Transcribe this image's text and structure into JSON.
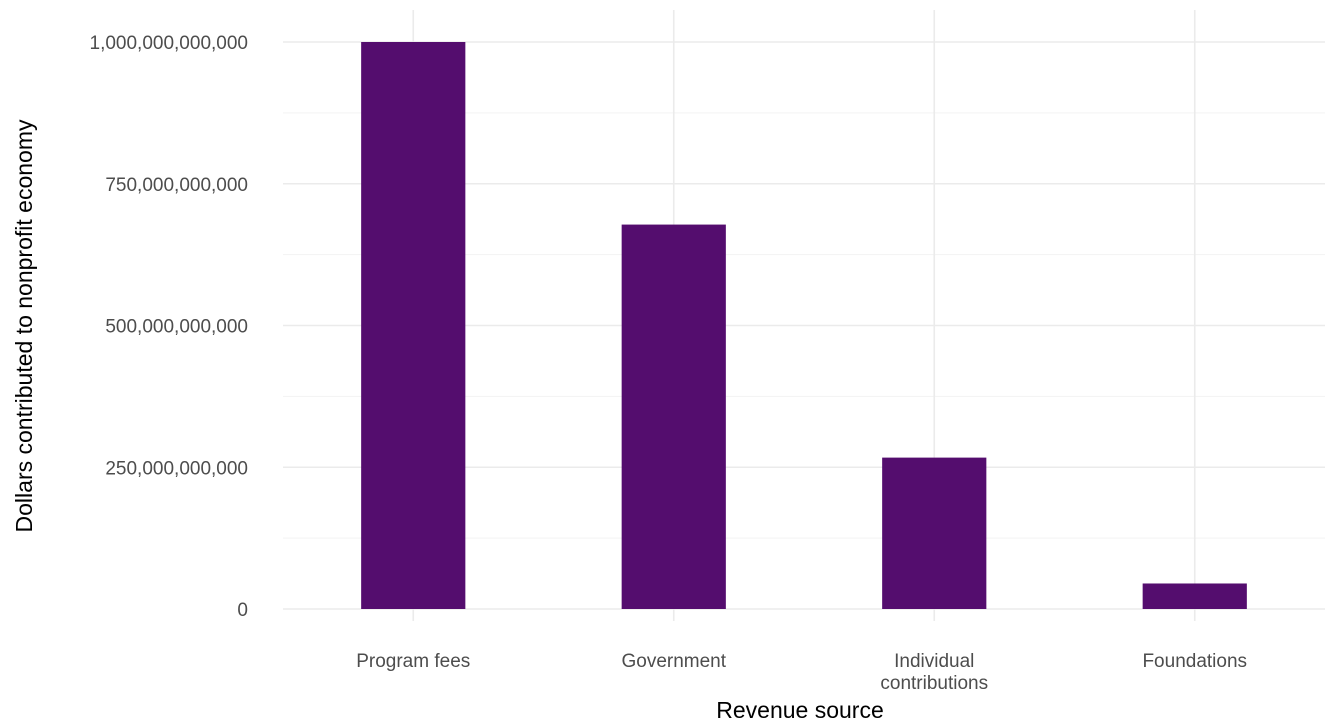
{
  "chart_data": {
    "type": "bar",
    "title": "",
    "xlabel": "Revenue source",
    "ylabel": "Dollars contributed to nonprofit economy",
    "categories": [
      [
        "Program fees"
      ],
      [
        "Government"
      ],
      [
        "Individual",
        "contributions"
      ],
      [
        "Foundations"
      ]
    ],
    "values": [
      1000000000000,
      678000000000,
      267000000000,
      45000000000
    ],
    "ylim": [
      0,
      1000000000000
    ],
    "yticks": [
      0,
      250000000000,
      500000000000,
      750000000000,
      1000000000000
    ],
    "ytick_labels": [
      "0",
      "250,000,000,000",
      "500,000,000,000",
      "750,000,000,000",
      "1,000,000,000,000"
    ],
    "bar_color": "#540d6e",
    "grid": true,
    "legend": "none"
  }
}
